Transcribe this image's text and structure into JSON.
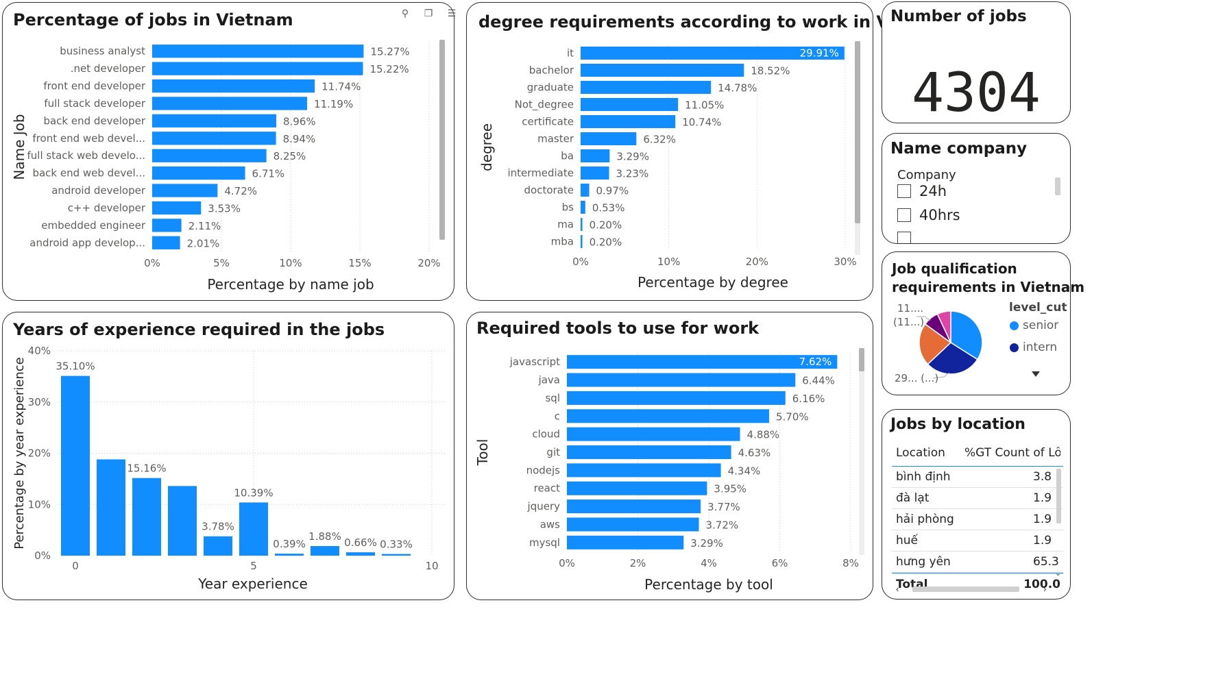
{
  "toolbar_icons": [
    "pin-icon",
    "copy-icon",
    "filter-icon",
    "expand-icon",
    "more-icon"
  ],
  "colors": {
    "bar": "#118dff",
    "pie": [
      "#118dff",
      "#12239e",
      "#e66c37",
      "#6b007b",
      "#e044a7"
    ]
  },
  "jobs_chart": {
    "title": "Percentage of jobs in Vietnam",
    "ylabel": "Name Job",
    "xlabel": "Percentage by name job",
    "chart_data": {
      "type": "bar",
      "orientation": "horizontal",
      "categories": [
        "business analyst",
        ".net developer",
        "front end developer",
        "full stack developer",
        "back end developer",
        "front end web devel...",
        "full stack web develo...",
        "back end web devel...",
        "android developer",
        "c++ developer",
        "embedded engineer",
        "android app develop..."
      ],
      "values": [
        15.27,
        15.22,
        11.74,
        11.19,
        8.96,
        8.94,
        8.25,
        6.71,
        4.72,
        3.53,
        2.11,
        2.01
      ],
      "data_labels": [
        "15.27%",
        "15.22%",
        "11.74%",
        "11.19%",
        "8.96%",
        "8.94%",
        "8.25%",
        "6.71%",
        "4.72%",
        "3.53%",
        "2.11%",
        "2.01%"
      ],
      "xticks": [
        "0%",
        "5%",
        "10%",
        "15%",
        "20%"
      ],
      "xlim": [
        0,
        20
      ]
    }
  },
  "degree_chart": {
    "title": "degree requirements according to work in Vietnam",
    "ylabel": "degree",
    "xlabel": "Percentage by degree",
    "chart_data": {
      "type": "bar",
      "orientation": "horizontal",
      "categories": [
        "it",
        "bachelor",
        "graduate",
        "Not_degree",
        "certificate",
        "master",
        "ba",
        "intermediate",
        "doctorate",
        "bs",
        "ma",
        "mba"
      ],
      "values": [
        29.91,
        18.52,
        14.78,
        11.05,
        10.74,
        6.32,
        3.29,
        3.23,
        0.97,
        0.53,
        0.2,
        0.2
      ],
      "data_labels": [
        "29.91%",
        "18.52%",
        "14.78%",
        "11.05%",
        "10.74%",
        "6.32%",
        "3.29%",
        "3.23%",
        "0.97%",
        "0.53%",
        "0.20%",
        "0.20%"
      ],
      "xticks": [
        "0%",
        "10%",
        "20%",
        "30%"
      ],
      "xlim": [
        0,
        30
      ]
    }
  },
  "count_card": {
    "title": "Number of jobs",
    "value": "4304"
  },
  "company_slicer": {
    "title": "Name company",
    "header": "Company",
    "items": [
      "24h",
      "40hrs"
    ]
  },
  "qual_pie": {
    "title_line1": "Job qualification",
    "title_line2": "requirements in Vietnam",
    "legend_title": "level_cut",
    "legend": [
      {
        "name": "senior",
        "color": "#118dff"
      },
      {
        "name": "intern",
        "color": "#12239e"
      }
    ],
    "label_top": "11....",
    "label_top2": "(11...)",
    "label_bottom": "29... (...)",
    "chart_data": {
      "type": "pie",
      "values": [
        34,
        29,
        22,
        8,
        7
      ],
      "colors": [
        "#118dff",
        "#12239e",
        "#e66c37",
        "#6b007b",
        "#e044a7"
      ]
    }
  },
  "location_table": {
    "title": "Jobs by location",
    "columns": [
      "Location",
      "%GT Count of Locati"
    ],
    "rows": [
      {
        "location": "bình định",
        "value": "3.8"
      },
      {
        "location": "đà lạt",
        "value": "1.9"
      },
      {
        "location": "hải phòng",
        "value": "1.9"
      },
      {
        "location": "huế",
        "value": "1.9"
      },
      {
        "location": "hưng yên",
        "value": "65.3"
      }
    ],
    "total_label": "Total",
    "total_value": "100.0"
  },
  "experience_chart": {
    "title": "Years of experience required in the jobs",
    "ylabel": "Percentage by year experience",
    "xlabel": "Year experience",
    "chart_data": {
      "type": "bar",
      "x": [
        0,
        1,
        2,
        3,
        4,
        5,
        6,
        7,
        8,
        9
      ],
      "values": [
        35.1,
        18.8,
        15.16,
        13.6,
        3.78,
        10.39,
        0.39,
        1.88,
        0.66,
        0.33
      ],
      "data_labels": [
        "35.10%",
        "",
        "15.16%",
        "",
        "3.78%",
        "10.39%",
        "0.39%",
        "1.88%",
        "0.66%",
        "0.33%"
      ],
      "yticks": [
        "0%",
        "10%",
        "20%",
        "30%",
        "40%"
      ],
      "ylim": [
        0,
        40
      ],
      "xticks": [
        "0",
        "5",
        "10"
      ],
      "xtick_values": [
        0,
        5,
        10
      ]
    }
  },
  "tools_chart": {
    "title": "Required tools to use for work",
    "ylabel": "Tool",
    "xlabel": "Percentage by tool",
    "chart_data": {
      "type": "bar",
      "orientation": "horizontal",
      "categories": [
        "javascript",
        "java",
        "sql",
        "c",
        "cloud",
        "git",
        "nodejs",
        "react",
        "jquery",
        "aws",
        "mysql"
      ],
      "values": [
        7.62,
        6.44,
        6.16,
        5.7,
        4.88,
        4.63,
        4.34,
        3.95,
        3.77,
        3.72,
        3.29
      ],
      "data_labels": [
        "7.62%",
        "6.44%",
        "6.16%",
        "5.70%",
        "4.88%",
        "4.63%",
        "4.34%",
        "3.95%",
        "3.77%",
        "3.72%",
        "3.29%"
      ],
      "xticks": [
        "0%",
        "2%",
        "4%",
        "6%",
        "8%"
      ],
      "xlim": [
        0,
        8
      ]
    }
  }
}
